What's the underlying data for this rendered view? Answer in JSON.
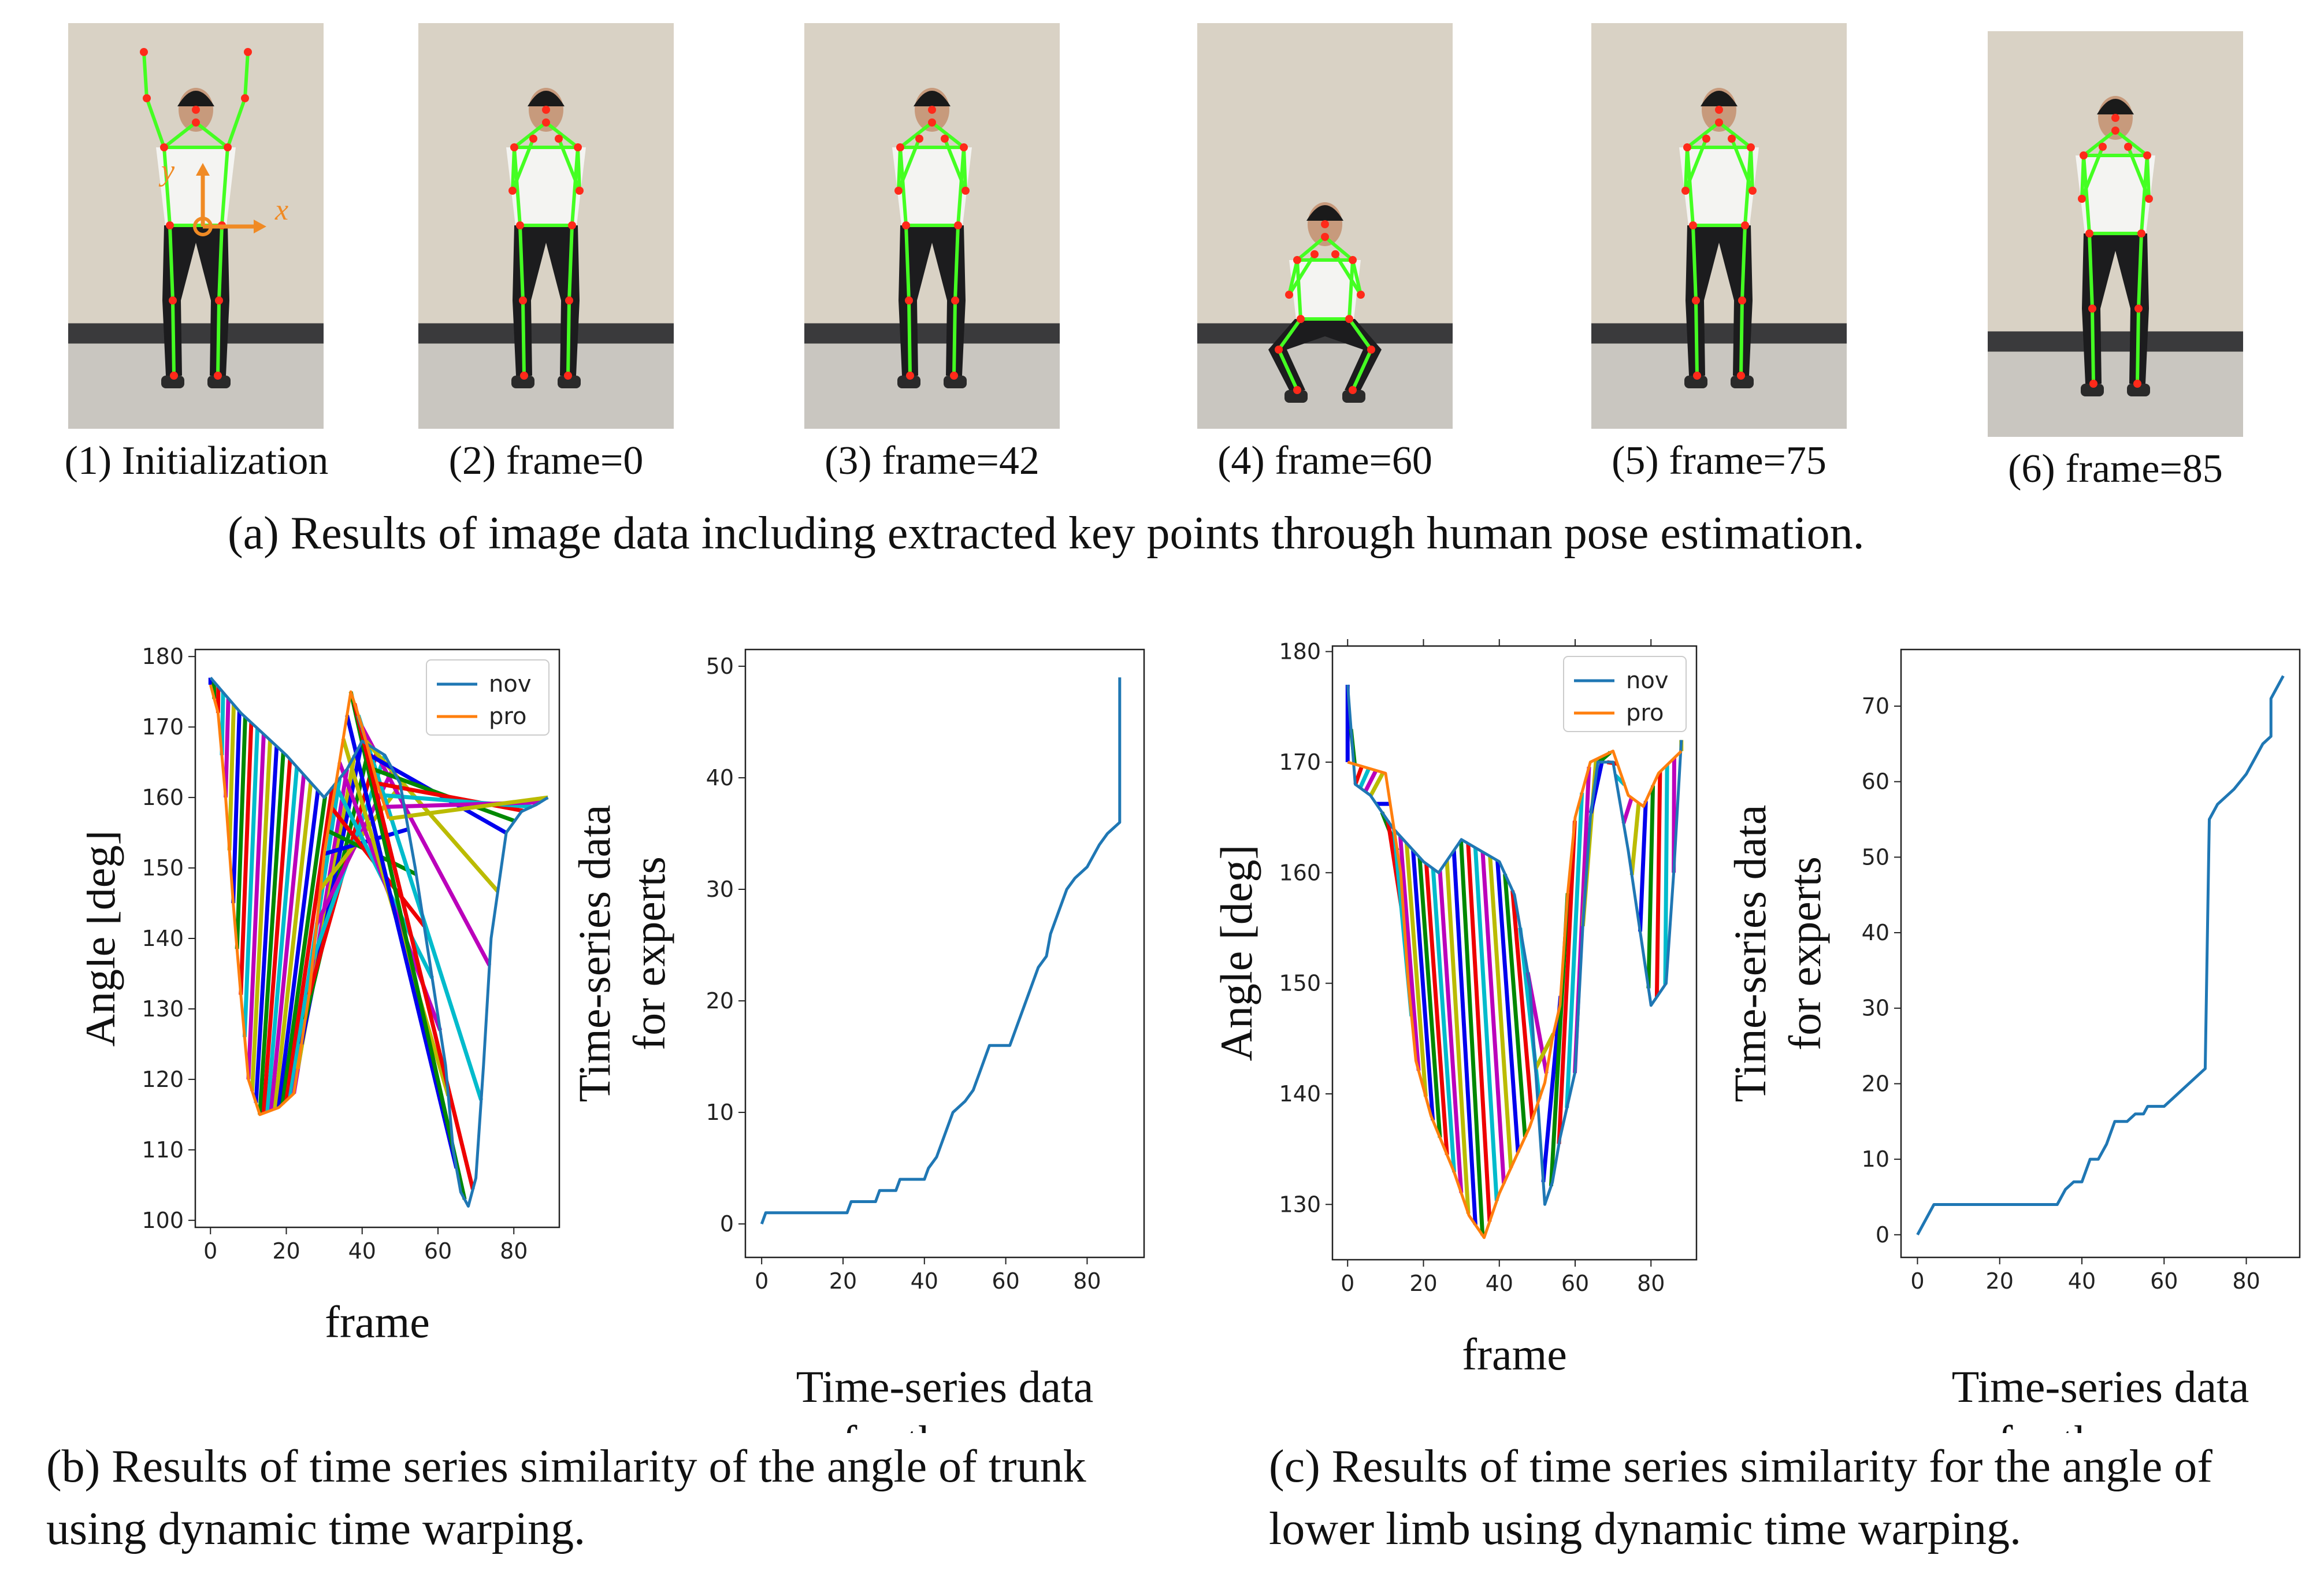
{
  "photos": [
    {
      "caption": "(1) Initialization",
      "pose": "arms-up",
      "axis_y": "y",
      "axis_x": "x"
    },
    {
      "caption": "(2) frame=0",
      "pose": "hands-face"
    },
    {
      "caption": "(3) frame=42",
      "pose": "hands-face"
    },
    {
      "caption": "(4) frame=60",
      "pose": "squat"
    },
    {
      "caption": "(5) frame=75",
      "pose": "hands-face"
    },
    {
      "caption": "(6) frame=85",
      "pose": "hands-face"
    }
  ],
  "caption_a": "(a) Results of image data including extracted key points through human pose estimation.",
  "caption_b": "(b) Results of time series similarity of the angle of trunk using dynamic time warping.",
  "caption_c": "(c) Results of time series similarity for the angle of lower limb using dynamic time warping.",
  "colors": {
    "nov": "#1f77b4",
    "pro": "#ff7f0e",
    "keypoint": "#ff2a1a",
    "skeleton": "#44ff22",
    "warp": [
      "#0000ee",
      "#008800",
      "#ee0000",
      "#00bbcc",
      "#bb00bb",
      "#bbbb00"
    ]
  },
  "chart_data": [
    {
      "id": "trunk-angle",
      "type": "line",
      "xlabel": "frame",
      "ylabel": "Angle [deg]",
      "xlim": [
        -4,
        92
      ],
      "ylim": [
        99,
        181
      ],
      "xticks": [
        0,
        20,
        40,
        60,
        80
      ],
      "yticks": [
        100,
        110,
        120,
        130,
        140,
        150,
        160,
        170,
        180
      ],
      "legend": [
        "nov",
        "pro"
      ],
      "legend_position": "top-right",
      "series": [
        {
          "name": "nov",
          "points": [
            [
              0,
              177
            ],
            [
              8,
              172
            ],
            [
              20,
              166
            ],
            [
              30,
              160
            ],
            [
              36,
              164
            ],
            [
              40,
              168
            ],
            [
              46,
              166
            ],
            [
              50,
              162
            ],
            [
              54,
              150
            ],
            [
              58,
              136
            ],
            [
              62,
              122
            ],
            [
              64,
              110
            ],
            [
              66,
              104
            ],
            [
              68,
              102
            ],
            [
              70,
              106
            ],
            [
              72,
              122
            ],
            [
              74,
              140
            ],
            [
              78,
              155
            ],
            [
              82,
              158
            ],
            [
              86,
              159
            ],
            [
              89,
              160
            ]
          ]
        },
        {
          "name": "pro",
          "points": [
            [
              0,
              176
            ],
            [
              2,
              172
            ],
            [
              4,
              160
            ],
            [
              6,
              145
            ],
            [
              8,
              132
            ],
            [
              10,
              120
            ],
            [
              13,
              115
            ],
            [
              18,
              116
            ],
            [
              22,
              118
            ],
            [
              26,
              132
            ],
            [
              30,
              152
            ],
            [
              34,
              165
            ],
            [
              37,
              175
            ],
            [
              40,
              170
            ],
            [
              44,
              162
            ],
            [
              47,
              157
            ]
          ]
        }
      ]
    },
    {
      "id": "trunk-path",
      "type": "line",
      "xlabel": "Time-series data for the user",
      "ylabel": "Time-series data for experts",
      "xlim": [
        -4,
        94
      ],
      "ylim": [
        -3,
        51.5
      ],
      "xticks": [
        0,
        20,
        40,
        60,
        80
      ],
      "yticks": [
        0,
        10,
        20,
        30,
        40,
        50
      ],
      "series": [
        {
          "name": "path",
          "points": [
            [
              0,
              0
            ],
            [
              1,
              1
            ],
            [
              21,
              1
            ],
            [
              22,
              2
            ],
            [
              28,
              2
            ],
            [
              29,
              3
            ],
            [
              33,
              3
            ],
            [
              34,
              4
            ],
            [
              40,
              4
            ],
            [
              41,
              5
            ],
            [
              43,
              6
            ],
            [
              45,
              8
            ],
            [
              47,
              10
            ],
            [
              50,
              11
            ],
            [
              52,
              12
            ],
            [
              54,
              14
            ],
            [
              56,
              16
            ],
            [
              61,
              16
            ],
            [
              63,
              18
            ],
            [
              65,
              20
            ],
            [
              68,
              23
            ],
            [
              70,
              24
            ],
            [
              71,
              26
            ],
            [
              73,
              28
            ],
            [
              75,
              30
            ],
            [
              77,
              31
            ],
            [
              80,
              32
            ],
            [
              83,
              34
            ],
            [
              85,
              35
            ],
            [
              88,
              36
            ],
            [
              88,
              49
            ]
          ]
        }
      ]
    },
    {
      "id": "limb-angle",
      "type": "line",
      "xlabel": "frame",
      "ylabel": "Angle [deg]",
      "xlim": [
        -4,
        92
      ],
      "ylim": [
        125,
        180.5
      ],
      "xticks": [
        0,
        20,
        40,
        60,
        80
      ],
      "yticks": [
        130,
        140,
        150,
        160,
        170,
        180
      ],
      "legend": [
        "nov",
        "pro"
      ],
      "legend_position": "top-right",
      "series": [
        {
          "name": "nov",
          "points": [
            [
              0,
              177
            ],
            [
              2,
              168
            ],
            [
              6,
              167
            ],
            [
              12,
              164
            ],
            [
              20,
              161
            ],
            [
              24,
              160
            ],
            [
              30,
              163
            ],
            [
              40,
              161
            ],
            [
              44,
              158
            ],
            [
              48,
              150
            ],
            [
              50,
              140
            ],
            [
              52,
              130
            ],
            [
              54,
              132
            ],
            [
              56,
              136
            ],
            [
              58,
              139
            ],
            [
              60,
              142
            ],
            [
              62,
              155
            ],
            [
              64,
              165
            ],
            [
              66,
              170
            ],
            [
              70,
              170
            ],
            [
              74,
              162
            ],
            [
              80,
              148
            ],
            [
              84,
              150
            ],
            [
              86,
              160
            ],
            [
              88,
              172
            ]
          ]
        },
        {
          "name": "pro",
          "points": [
            [
              0,
              170
            ],
            [
              10,
              169
            ],
            [
              14,
              160
            ],
            [
              16,
              150
            ],
            [
              18,
              143
            ],
            [
              22,
              138
            ],
            [
              28,
              133
            ],
            [
              32,
              129
            ],
            [
              36,
              127
            ],
            [
              40,
              131
            ],
            [
              44,
              134
            ],
            [
              48,
              137
            ],
            [
              52,
              141
            ],
            [
              54,
              145
            ],
            [
              56,
              148
            ],
            [
              58,
              158
            ],
            [
              60,
              165
            ],
            [
              64,
              170
            ],
            [
              70,
              171
            ],
            [
              74,
              167
            ],
            [
              78,
              166
            ],
            [
              82,
              169
            ],
            [
              88,
              171
            ]
          ]
        }
      ]
    },
    {
      "id": "limb-path",
      "type": "line",
      "xlabel": "Time-series data for the user",
      "ylabel": "Time-series data for experts",
      "xlim": [
        -4,
        93
      ],
      "ylim": [
        -3,
        77.5
      ],
      "xticks": [
        0,
        20,
        40,
        60,
        80
      ],
      "yticks": [
        0,
        10,
        20,
        30,
        40,
        50,
        60,
        70
      ],
      "series": [
        {
          "name": "path",
          "points": [
            [
              0,
              0
            ],
            [
              4,
              4
            ],
            [
              34,
              4
            ],
            [
              36,
              6
            ],
            [
              38,
              7
            ],
            [
              40,
              7
            ],
            [
              42,
              10
            ],
            [
              44,
              10
            ],
            [
              46,
              12
            ],
            [
              48,
              15
            ],
            [
              51,
              15
            ],
            [
              53,
              16
            ],
            [
              55,
              16
            ],
            [
              56,
              17
            ],
            [
              60,
              17
            ],
            [
              62,
              18
            ],
            [
              64,
              19
            ],
            [
              66,
              20
            ],
            [
              70,
              22
            ],
            [
              71,
              55
            ],
            [
              73,
              57
            ],
            [
              75,
              58
            ],
            [
              77,
              59
            ],
            [
              80,
              61
            ],
            [
              82,
              63
            ],
            [
              84,
              65
            ],
            [
              86,
              66
            ],
            [
              86,
              71
            ],
            [
              89,
              74
            ]
          ]
        }
      ]
    }
  ]
}
